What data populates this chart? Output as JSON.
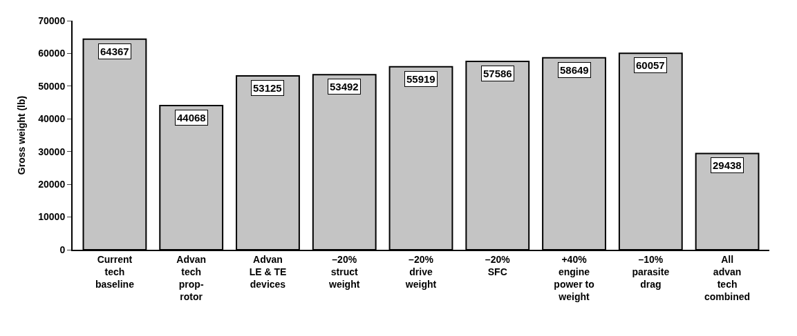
{
  "chart_data": {
    "type": "bar",
    "ylabel": "Gross weight (lb)",
    "categories": [
      "Current\ntech\nbaseline",
      "Advan\ntech\nprop-\nrotor",
      "Advan\nLE & TE\ndevices",
      "–20%\nstruct\nweight",
      "–20%\ndrive\nweight",
      "–20%\nSFC",
      "+40%\nengine\npower to\nweight",
      "–10%\nparasite\ndrag",
      "All\nadvan\ntech\ncombined"
    ],
    "values": [
      64367,
      44068,
      53125,
      53492,
      55919,
      57586,
      58649,
      60057,
      29438
    ],
    "color": "#c4c4c4",
    "data_labels": true,
    "ylim": [
      0,
      70000
    ],
    "yticks": [
      0,
      10000,
      20000,
      30000,
      40000,
      50000,
      60000,
      70000
    ]
  }
}
